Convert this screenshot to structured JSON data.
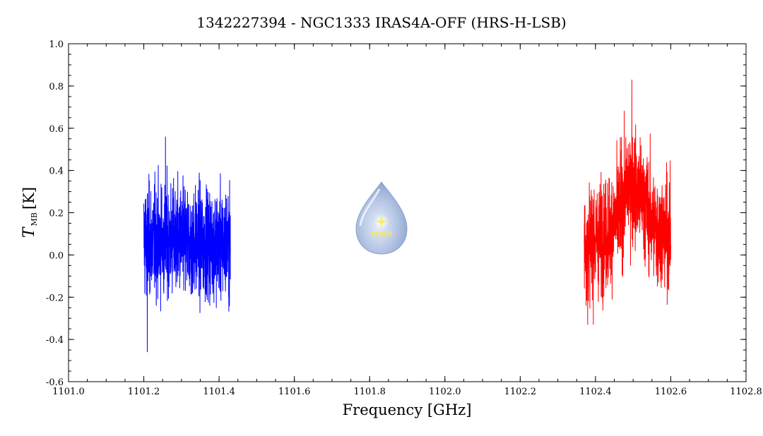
{
  "chart_data": {
    "type": "line",
    "title": "1342227394 - NGC1333 IRAS4A-OFF (HRS-H-LSB)",
    "xlabel": "Frequency [GHz]",
    "ylabel_main": "T",
    "ylabel_sub": "MB",
    "ylabel_unit": "[K]",
    "xlim": [
      1101.0,
      1102.8
    ],
    "ylim": [
      -0.6,
      1.0
    ],
    "x_ticks": [
      1101.0,
      1101.2,
      1101.4,
      1101.6,
      1101.8,
      1102.0,
      1102.2,
      1102.4,
      1102.6,
      1102.8
    ],
    "x_tick_labels": [
      "1101.0",
      "1101.2",
      "1101.4",
      "1101.6",
      "1101.8",
      "1102.0",
      "1102.2",
      "1102.4",
      "1102.6",
      "1102.8"
    ],
    "y_ticks": [
      -0.6,
      -0.4,
      -0.2,
      0.0,
      0.2,
      0.4,
      0.6,
      0.8,
      1.0
    ],
    "y_tick_labels": [
      "-0.6",
      "-0.4",
      "-0.2",
      "0.0",
      "0.2",
      "0.4",
      "0.6",
      "0.8",
      "1.0"
    ],
    "grid": false,
    "series": [
      {
        "color": "#0000ff",
        "x_range": [
          1101.2,
          1101.43
        ],
        "noise_min": -0.46,
        "noise_max": 0.56,
        "baseline": [
          [
            1101.2,
            0.07
          ],
          [
            1101.43,
            0.05
          ]
        ]
      },
      {
        "color": "#ff0000",
        "x_range": [
          1102.37,
          1102.6
        ],
        "noise_min": -0.33,
        "noise_max": 0.83,
        "baseline": [
          [
            1102.37,
            0.05
          ],
          [
            1102.43,
            0.1
          ],
          [
            1102.46,
            0.18
          ],
          [
            1102.49,
            0.35
          ],
          [
            1102.52,
            0.28
          ],
          [
            1102.56,
            0.12
          ],
          [
            1102.6,
            0.1
          ]
        ]
      }
    ]
  },
  "logo": {
    "text": "WISH",
    "icon": "wish-droplet-logo"
  }
}
